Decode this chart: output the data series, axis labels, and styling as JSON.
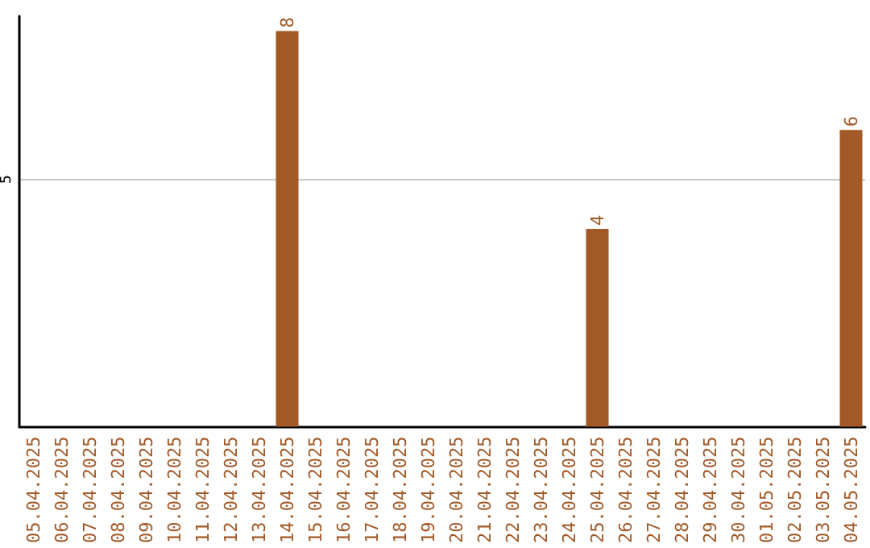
{
  "chart_data": {
    "type": "bar",
    "categories": [
      "05.04.2025",
      "06.04.2025",
      "07.04.2025",
      "08.04.2025",
      "09.04.2025",
      "10.04.2025",
      "11.04.2025",
      "12.04.2025",
      "13.04.2025",
      "14.04.2025",
      "15.04.2025",
      "16.04.2025",
      "17.04.2025",
      "18.04.2025",
      "19.04.2025",
      "20.04.2025",
      "21.04.2025",
      "22.04.2025",
      "23.04.2025",
      "24.04.2025",
      "25.04.2025",
      "26.04.2025",
      "27.04.2025",
      "28.04.2025",
      "29.04.2025",
      "30.04.2025",
      "01.05.2025",
      "02.05.2025",
      "03.05.2025",
      "04.05.2025"
    ],
    "values": [
      0,
      0,
      0,
      0,
      0,
      0,
      0,
      0,
      0,
      8,
      0,
      0,
      0,
      0,
      0,
      0,
      0,
      0,
      0,
      0,
      4,
      0,
      0,
      0,
      0,
      0,
      0,
      0,
      0,
      6
    ],
    "value_labels": [
      null,
      null,
      null,
      null,
      null,
      null,
      null,
      null,
      null,
      "8",
      null,
      null,
      null,
      null,
      null,
      null,
      null,
      null,
      null,
      null,
      "4",
      null,
      null,
      null,
      null,
      null,
      null,
      null,
      null,
      "6"
    ],
    "color": "#a15927",
    "ylim": [
      0,
      8.3
    ],
    "yticks": [
      5
    ],
    "grid": "y"
  }
}
